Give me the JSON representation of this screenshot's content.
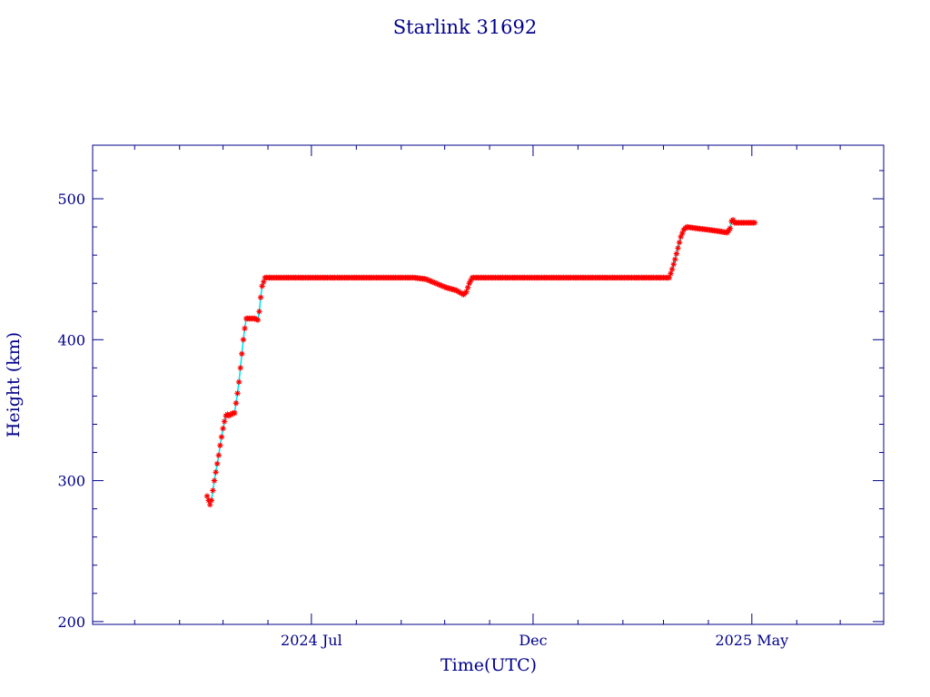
{
  "chart_data": {
    "type": "scatter",
    "title": "Starlink 31692",
    "xlabel": "Time(UTC)",
    "ylabel": "Height (km)",
    "xlim": [
      "2024-02-01",
      "2025-07-31"
    ],
    "ylim": [
      198,
      538
    ],
    "grid": false,
    "x_ticks": [
      {
        "date": "2024-07-01",
        "label": "2024 Jul"
      },
      {
        "date": "2024-12-01",
        "label": "Dec"
      },
      {
        "date": "2025-05-01",
        "label": "2025 May"
      }
    ],
    "y_ticks": [
      {
        "value": 200,
        "label": "200"
      },
      {
        "value": 300,
        "label": "300"
      },
      {
        "value": 400,
        "label": "400"
      },
      {
        "value": 500,
        "label": "500"
      }
    ],
    "colors": {
      "axes": "#00008b",
      "marker": "#ff0000",
      "line": "#00e5ee"
    },
    "series": [
      {
        "marker": "asterisk",
        "points": [
          [
            "2024-04-20",
            289
          ],
          [
            "2024-04-22",
            283
          ],
          [
            "2024-04-23",
            286
          ],
          [
            "2024-04-24",
            293
          ],
          [
            "2024-04-25",
            300
          ],
          [
            "2024-04-26",
            306
          ],
          [
            "2024-04-27",
            312
          ],
          [
            "2024-04-28",
            318
          ],
          [
            "2024-04-29",
            325
          ],
          [
            "2024-04-30",
            331
          ],
          [
            "2024-05-01",
            337
          ],
          [
            "2024-05-02",
            342
          ],
          [
            "2024-05-03",
            346
          ],
          [
            "2024-05-04",
            347
          ],
          [
            "2024-05-05",
            346
          ],
          [
            "2024-05-06",
            347
          ],
          [
            "2024-05-07",
            347
          ],
          [
            "2024-05-08",
            348
          ],
          [
            "2024-05-09",
            348
          ],
          [
            "2024-05-10",
            355
          ],
          [
            "2024-05-11",
            362
          ],
          [
            "2024-05-12",
            370
          ],
          [
            "2024-05-13",
            380
          ],
          [
            "2024-05-14",
            390
          ],
          [
            "2024-05-15",
            400
          ],
          [
            "2024-05-16",
            408
          ],
          [
            "2024-05-17",
            415
          ],
          [
            "2024-05-19",
            415
          ],
          [
            "2024-05-21",
            415
          ],
          [
            "2024-05-23",
            415
          ],
          [
            "2024-05-25",
            414
          ],
          [
            "2024-05-26",
            420
          ],
          [
            "2024-05-27",
            430
          ],
          [
            "2024-05-28",
            438
          ],
          [
            "2024-05-30",
            444
          ],
          [
            "2024-06-10",
            444
          ],
          [
            "2024-06-25",
            444
          ],
          [
            "2024-07-10",
            444
          ],
          [
            "2024-07-25",
            444
          ],
          [
            "2024-08-10",
            444
          ],
          [
            "2024-08-25",
            444
          ],
          [
            "2024-09-10",
            444
          ],
          [
            "2024-09-18",
            443
          ],
          [
            "2024-09-25",
            440
          ],
          [
            "2024-10-02",
            437
          ],
          [
            "2024-10-09",
            435
          ],
          [
            "2024-10-14",
            432
          ],
          [
            "2024-10-16",
            434
          ],
          [
            "2024-10-18",
            440
          ],
          [
            "2024-10-20",
            444
          ],
          [
            "2024-11-01",
            444
          ],
          [
            "2024-11-15",
            444
          ],
          [
            "2024-12-01",
            444
          ],
          [
            "2024-12-15",
            444
          ],
          [
            "2025-01-01",
            444
          ],
          [
            "2025-01-15",
            444
          ],
          [
            "2025-02-01",
            444
          ],
          [
            "2025-02-15",
            444
          ],
          [
            "2025-03-01",
            444
          ],
          [
            "2025-03-05",
            444
          ],
          [
            "2025-03-07",
            450
          ],
          [
            "2025-03-09",
            457
          ],
          [
            "2025-03-11",
            465
          ],
          [
            "2025-03-13",
            473
          ],
          [
            "2025-03-15",
            478
          ],
          [
            "2025-03-17",
            480
          ],
          [
            "2025-03-24",
            479
          ],
          [
            "2025-04-01",
            478
          ],
          [
            "2025-04-08",
            477
          ],
          [
            "2025-04-14",
            476
          ],
          [
            "2025-04-16",
            479
          ],
          [
            "2025-04-17",
            484
          ],
          [
            "2025-04-18",
            485
          ],
          [
            "2025-04-19",
            483
          ],
          [
            "2025-04-26",
            483
          ],
          [
            "2025-05-03",
            483
          ]
        ]
      }
    ]
  }
}
